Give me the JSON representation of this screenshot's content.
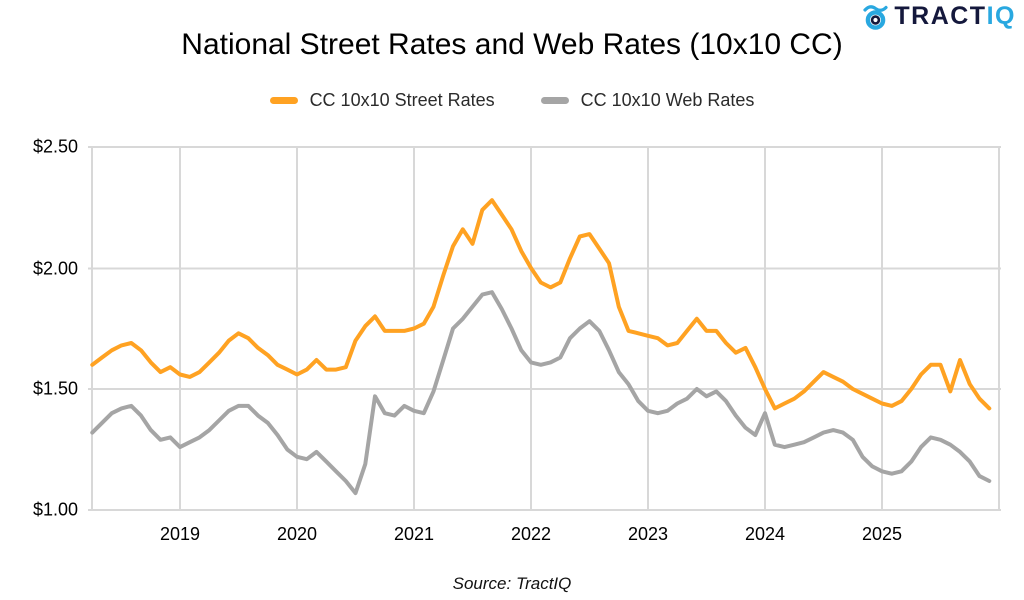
{
  "logo": {
    "text_primary": "TRACT",
    "text_secondary": "IQ",
    "color_primary": "#14183C",
    "color_secondary": "#29A8E0"
  },
  "title": "National Street Rates and Web Rates (10x10 CC)",
  "legend": [
    {
      "label": "CC 10x10 Street Rates",
      "color": "#FFA222"
    },
    {
      "label": "CC 10x10 Web Rates",
      "color": "#A5A5A5"
    }
  ],
  "source": "Source: TractIQ",
  "colors": {
    "street_line": "#FFA222",
    "web_line": "#A5A5A5",
    "gridline": "#D8D8D8"
  },
  "chart_data": {
    "type": "line",
    "title": "National Street Rates and Web Rates (10x10 CC)",
    "x_start": "2018-04",
    "x_frequency": "monthly",
    "x_end": "2025-12",
    "x_tick_labels": [
      "2019",
      "2020",
      "2021",
      "2022",
      "2023",
      "2024",
      "2025"
    ],
    "y_tick_labels": [
      "$2.50",
      "$2.00",
      "$1.50",
      "$1.00"
    ],
    "y_tick_values": [
      2.5,
      2.0,
      1.5,
      1.0
    ],
    "ylim": [
      1.0,
      2.5
    ],
    "grid": true,
    "legend_position": "top",
    "series": [
      {
        "name": "CC 10x10 Street Rates",
        "color": "#FFA222",
        "values": [
          1.6,
          1.63,
          1.66,
          1.68,
          1.69,
          1.66,
          1.61,
          1.57,
          1.59,
          1.56,
          1.55,
          1.57,
          1.61,
          1.65,
          1.7,
          1.73,
          1.71,
          1.67,
          1.64,
          1.6,
          1.58,
          1.56,
          1.58,
          1.62,
          1.58,
          1.58,
          1.59,
          1.7,
          1.76,
          1.8,
          1.74,
          1.74,
          1.74,
          1.75,
          1.77,
          1.84,
          1.97,
          2.09,
          2.16,
          2.1,
          2.24,
          2.28,
          2.22,
          2.16,
          2.07,
          2.0,
          1.94,
          1.92,
          1.94,
          2.04,
          2.13,
          2.14,
          2.08,
          2.02,
          1.84,
          1.74,
          1.73,
          1.72,
          1.71,
          1.68,
          1.69,
          1.74,
          1.79,
          1.74,
          1.74,
          1.69,
          1.65,
          1.67,
          1.59,
          1.5,
          1.42,
          1.44,
          1.46,
          1.49,
          1.53,
          1.57,
          1.55,
          1.53,
          1.5,
          1.48,
          1.46,
          1.44,
          1.43,
          1.45,
          1.5,
          1.56,
          1.6,
          1.6,
          1.49,
          1.62,
          1.52,
          1.46,
          1.42
        ]
      },
      {
        "name": "CC 10x10 Web Rates",
        "color": "#A5A5A5",
        "values": [
          1.32,
          1.36,
          1.4,
          1.42,
          1.43,
          1.39,
          1.33,
          1.29,
          1.3,
          1.26,
          1.28,
          1.3,
          1.33,
          1.37,
          1.41,
          1.43,
          1.43,
          1.39,
          1.36,
          1.31,
          1.25,
          1.22,
          1.21,
          1.24,
          1.2,
          1.16,
          1.12,
          1.07,
          1.19,
          1.47,
          1.4,
          1.39,
          1.43,
          1.41,
          1.4,
          1.49,
          1.62,
          1.75,
          1.79,
          1.84,
          1.89,
          1.9,
          1.83,
          1.75,
          1.66,
          1.61,
          1.6,
          1.61,
          1.63,
          1.71,
          1.75,
          1.78,
          1.74,
          1.66,
          1.57,
          1.52,
          1.45,
          1.41,
          1.4,
          1.41,
          1.44,
          1.46,
          1.5,
          1.47,
          1.49,
          1.45,
          1.39,
          1.34,
          1.31,
          1.4,
          1.27,
          1.26,
          1.27,
          1.28,
          1.3,
          1.32,
          1.33,
          1.32,
          1.29,
          1.22,
          1.18,
          1.16,
          1.15,
          1.16,
          1.2,
          1.26,
          1.3,
          1.29,
          1.27,
          1.24,
          1.2,
          1.14,
          1.12
        ]
      }
    ]
  }
}
